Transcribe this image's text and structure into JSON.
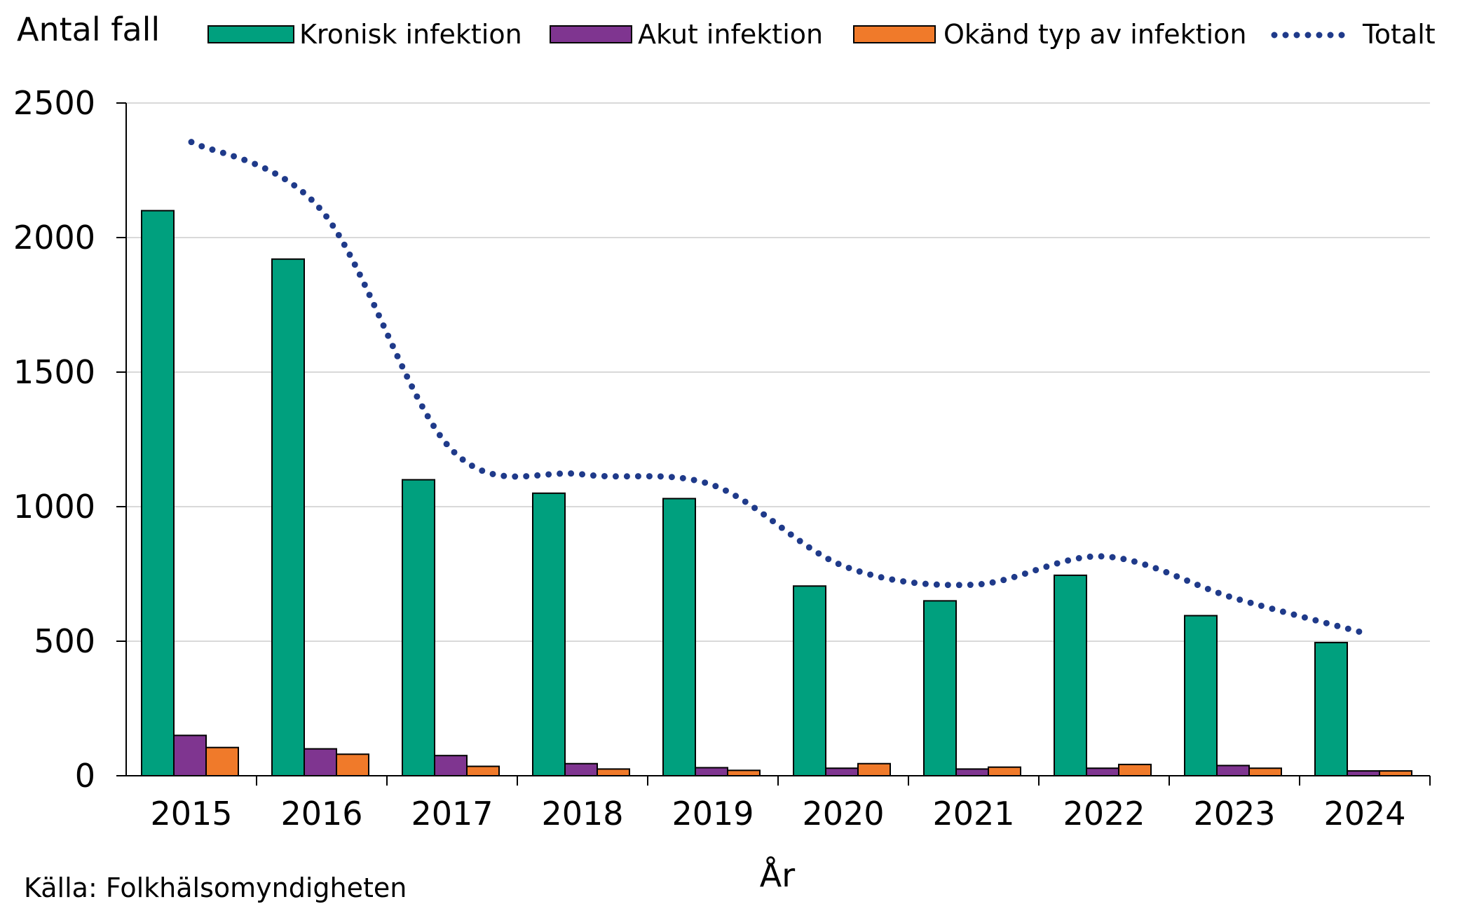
{
  "chart_data": {
    "type": "bar",
    "ylabel": "Antal fall",
    "xlabel": "År",
    "source": "Källa: Folkhälsomyndigheten",
    "ylim": [
      0,
      2500
    ],
    "yticks": [
      0,
      500,
      1000,
      1500,
      2000,
      2500
    ],
    "grid": true,
    "legend_position": "top",
    "categories": [
      "2015",
      "2016",
      "2017",
      "2018",
      "2019",
      "2020",
      "2021",
      "2022",
      "2023",
      "2024"
    ],
    "series": [
      {
        "name": "Kronisk infektion",
        "type": "bar",
        "color": "#00A07E",
        "values": [
          2100,
          1920,
          1100,
          1050,
          1030,
          705,
          650,
          745,
          595,
          495
        ]
      },
      {
        "name": "Akut infektion",
        "type": "bar",
        "color": "#7F3590",
        "values": [
          150,
          100,
          75,
          45,
          30,
          28,
          25,
          28,
          38,
          18
        ]
      },
      {
        "name": "Okänd typ av infektion",
        "type": "bar",
        "color": "#F07A2A",
        "values": [
          105,
          80,
          35,
          25,
          20,
          45,
          32,
          42,
          28,
          18
        ]
      },
      {
        "name": "Totalt",
        "type": "line",
        "style": "dotted",
        "color": "#1F3A8A",
        "values": [
          2355,
          2100,
          1210,
          1120,
          1080,
          780,
          710,
          815,
          660,
          530
        ]
      }
    ]
  }
}
